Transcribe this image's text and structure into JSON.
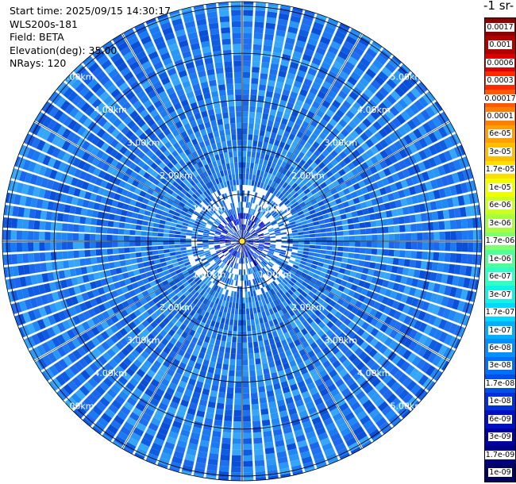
{
  "header": {
    "start_time": "Start time: 2025/09/15 14:30:17",
    "instrument": "WLS200s-181",
    "field": "Field: BETA",
    "elevation": "Elevation(deg): 35.00",
    "nrays": "NRays: 120"
  },
  "colorbar": {
    "title": "-1 sr-",
    "labels": [
      "0.0017",
      "0.001",
      "0.0006",
      "0.0003",
      "0.00017",
      "0.0001",
      "6e-05",
      "3e-05",
      "1.7e-05",
      "1e-05",
      "6e-06",
      "3e-06",
      "1.7e-06",
      "1e-06",
      "6e-07",
      "3e-07",
      "1.7e-07",
      "1e-07",
      "6e-08",
      "3e-08",
      "1.7e-08",
      "1e-08",
      "6e-09",
      "3e-09",
      "1.7e-09",
      "1e-09"
    ],
    "colors": [
      "#8b0000",
      "#b00000",
      "#dd0000",
      "#ff2a00",
      "#ff5a00",
      "#ff8000",
      "#ff9f00",
      "#ffbf00",
      "#ffdf00",
      "#f0ff00",
      "#ccff22",
      "#a8ff40",
      "#80ff70",
      "#50ff9a",
      "#30ffc6",
      "#10f2e6",
      "#00d8ff",
      "#00b0ff",
      "#0090ff",
      "#0070f8",
      "#0050e8",
      "#0030d8",
      "#0010c0",
      "#0000a0",
      "#000080",
      "#000060"
    ]
  },
  "chart_data": {
    "type": "heatmap",
    "projection": "polar PPI",
    "n_rays": 120,
    "range_rings_km": [
      1,
      2,
      3,
      4,
      5
    ],
    "ring_labels": [
      "1.00km",
      "2.00km",
      "3.00km",
      "4.00km",
      "5.00km"
    ],
    "max_range_km": 5.1,
    "colorscale": "log",
    "dominant_values": [
      3e-08,
      6e-08,
      1e-07
    ],
    "grid": true
  }
}
